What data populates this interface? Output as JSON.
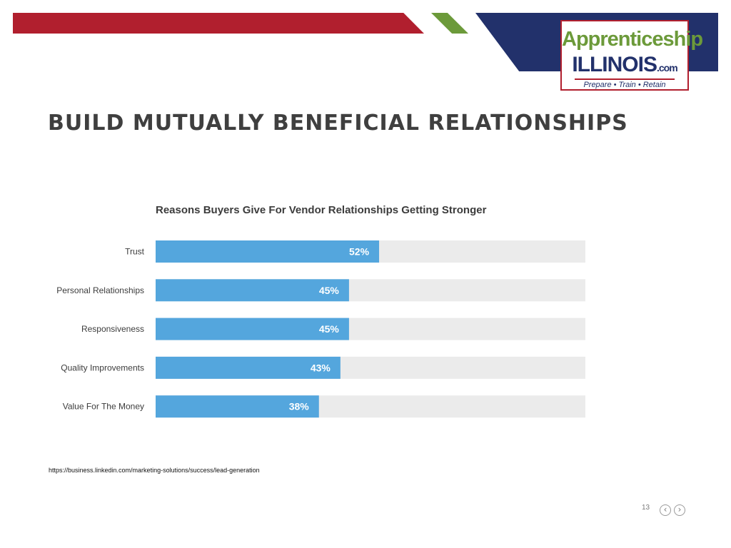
{
  "header": {
    "colors": {
      "red": "#b11f2e",
      "green": "#6c9a3a",
      "navy": "#22316b"
    },
    "logo": {
      "line1": "Apprenticeship",
      "line2": "ILLINOIS",
      "line2_suffix": ".com",
      "tagline": "Prepare • Train • Retain"
    }
  },
  "slide": {
    "title": "BUILD MUTUALLY BENEFICIAL RELATIONSHIPS",
    "source": "https://business.linkedin.com/marketing-solutions/success/lead-generation",
    "page_number": "13",
    "nav": {
      "prev_icon": "chevron-left-icon",
      "next_icon": "chevron-right-icon",
      "prev_glyph": "‹",
      "next_glyph": "›"
    }
  },
  "chart_data": {
    "type": "bar",
    "orientation": "horizontal",
    "title": "Reasons Buyers Give For Vendor Relationships Getting Stronger",
    "categories": [
      "Trust",
      "Personal Relationships",
      "Responsiveness",
      "Quality Improvements",
      "Value For The Money"
    ],
    "values": [
      52,
      45,
      45,
      43,
      38
    ],
    "value_labels": [
      "52%",
      "45%",
      "45%",
      "43%",
      "38%"
    ],
    "xlim": [
      0,
      100
    ],
    "grid": false,
    "colors": {
      "bar": "#54a6dd",
      "track": "#ebebeb"
    }
  }
}
